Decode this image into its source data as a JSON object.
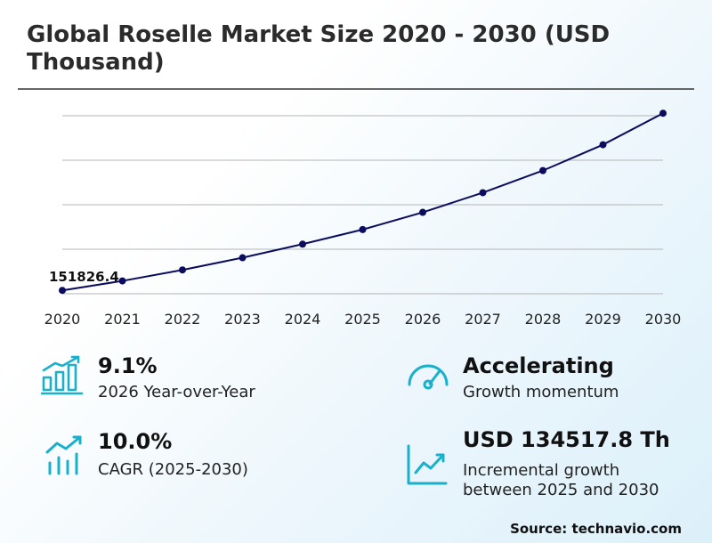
{
  "title": "Global Roselle Market Size 2020 - 2030 (USD Thousand)",
  "chart_data": {
    "type": "line",
    "x": [
      "2020",
      "2021",
      "2022",
      "2023",
      "2024",
      "2025",
      "2026",
      "2027",
      "2028",
      "2029",
      "2030"
    ],
    "values": [
      151826.4,
      162800,
      175500,
      189600,
      205300,
      222200,
      242100,
      264800,
      290400,
      320300,
      356700
    ],
    "annotations": [
      {
        "x": "2020",
        "label": "151826.4"
      }
    ],
    "ylim": [
      150000,
      360000
    ],
    "grid": true,
    "line_color": "#0c0c5e"
  },
  "metrics": [
    {
      "value": "9.1%",
      "label": "2026 Year-over-Year",
      "icon": "bar-chart-up-icon"
    },
    {
      "value": "Accelerating",
      "label": "Growth momentum",
      "icon": "gauge-icon"
    },
    {
      "value": "10.0%",
      "label": "CAGR (2025-2030)",
      "icon": "bars-trend-icon"
    },
    {
      "value": "USD 134517.8 Th",
      "label_line1": "Incremental growth",
      "label_line2": "between 2025 and 2030",
      "icon": "line-chart-icon"
    }
  ],
  "accent_color": "#1ab0cc",
  "source": "Source: technavio.com"
}
